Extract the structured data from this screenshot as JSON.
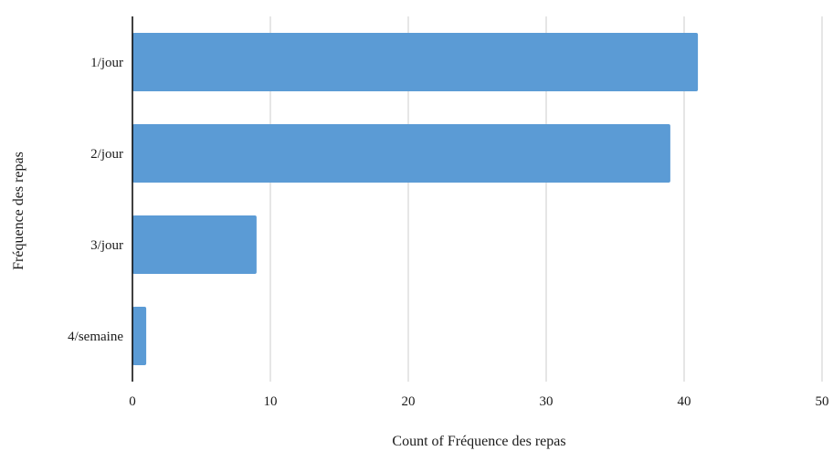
{
  "chart_data": {
    "type": "bar",
    "orientation": "horizontal",
    "categories": [
      "1/jour",
      "2/jour",
      "3/jour",
      "4/semaine"
    ],
    "values": [
      41,
      39,
      9,
      1
    ],
    "xlabel": "Count of Fréquence des repas",
    "ylabel": "Fréquence des repas",
    "xlim": [
      0,
      50
    ],
    "xticks": [
      0,
      10,
      20,
      30,
      40,
      50
    ],
    "grid": true,
    "bar_color": "#5b9bd5",
    "grid_color": "#cccccc",
    "axis_color": "#000000"
  }
}
